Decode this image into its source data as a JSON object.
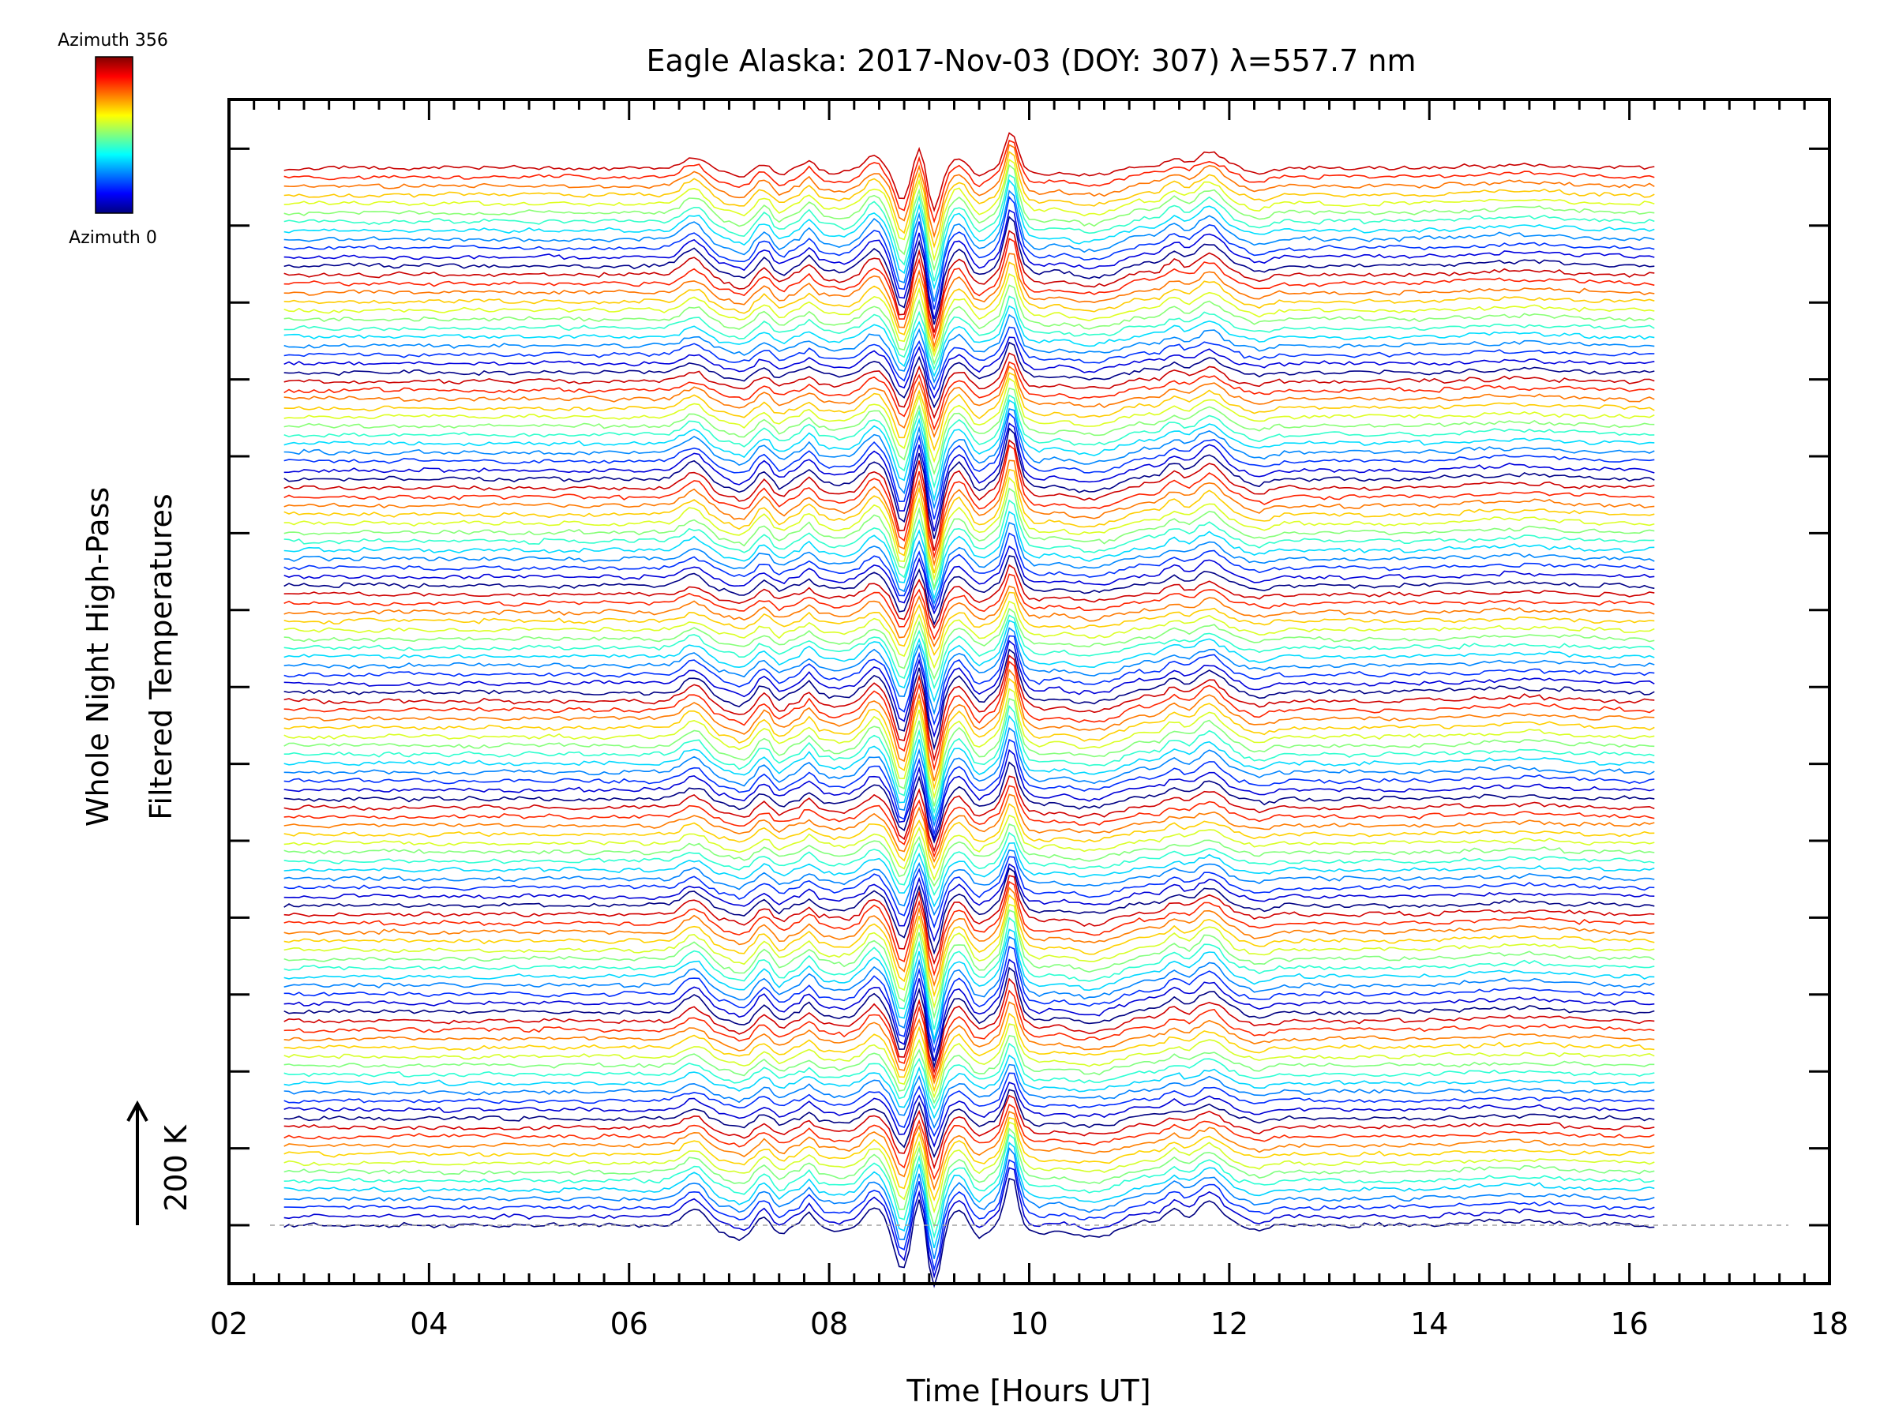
{
  "chart_data": {
    "type": "line",
    "title": "Eagle Alaska: 2017-Nov-03 (DOY: 307) λ=557.7 nm",
    "xlabel": "Time [Hours UT]",
    "ylabel_line1": "Whole Night High-Pass",
    "ylabel_line2": "Filtered Temperatures",
    "xlim": [
      2,
      18
    ],
    "x_ticks": [
      "02",
      "04",
      "06",
      "08",
      "10",
      "12",
      "14",
      "16",
      "18"
    ],
    "x_tick_values": [
      2,
      4,
      6,
      8,
      10,
      12,
      14,
      16,
      18
    ],
    "x_start": 2.55,
    "x_end": 16.25,
    "trace_count": 120,
    "scale_bar_label": "200 K",
    "scale_bar_kelvin": 200,
    "colorbar": {
      "top_label": "Azimuth 356",
      "bottom_label": "Azimuth 0",
      "min": 0,
      "max": 356
    },
    "baseline": "dashed",
    "colors": {
      "axis": "#000000",
      "baseline": "#a0a0a0"
    }
  }
}
